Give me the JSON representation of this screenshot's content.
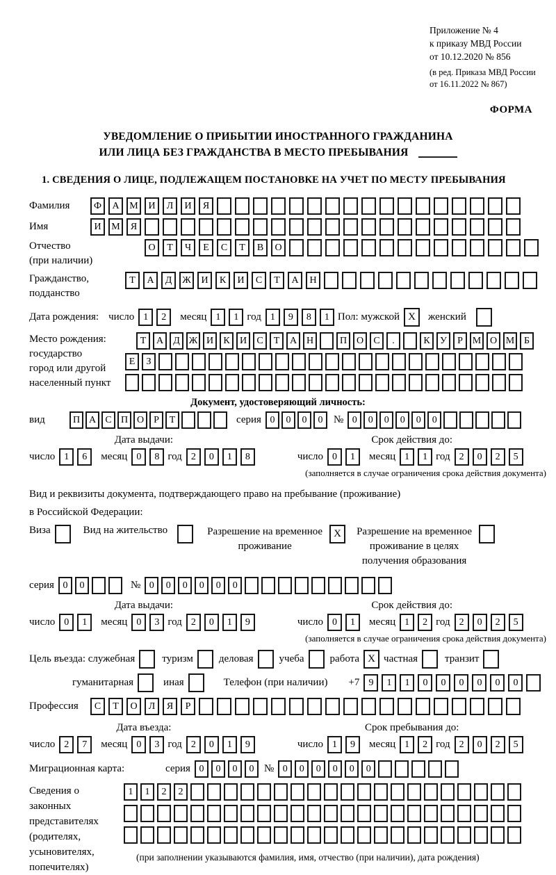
{
  "header": {
    "line1": "Приложение № 4",
    "line2": "к приказу МВД России",
    "line3": "от 10.12.2020 № 856",
    "line4": "(в ред. Приказа МВД России",
    "line5": "от 16.11.2022 № 867)",
    "forma": "ФОРМА"
  },
  "title": {
    "line1": "УВЕДОМЛЕНИЕ О ПРИБЫТИИ ИНОСТРАННОГО ГРАЖДАНИНА",
    "line2": "ИЛИ ЛИЦА БЕЗ ГРАЖДАНСТВА В МЕСТО ПРЕБЫВАНИЯ"
  },
  "section1_heading": "1. СВЕДЕНИЯ О ЛИЦЕ, ПОДЛЕЖАЩЕМ ПОСТАНОВКЕ НА УЧЕТ ПО МЕСТУ ПРЕБЫВАНИЯ",
  "shared": {
    "day": "число",
    "month": "месяц",
    "year": "год",
    "series": "серия",
    "number": "№",
    "limit_note": "(заполняется в случае ограничения срока действия документа)"
  },
  "person": {
    "surname_label": "Фамилия",
    "surname": {
      "value": "ФАМИЛИЯ",
      "cells": 24
    },
    "name_label": "Имя",
    "name": {
      "value": "ИМЯ",
      "cells": 24
    },
    "patronymic_label1": "Отчество",
    "patronymic_label2": "(при наличии)",
    "patronymic": {
      "value": "ОТЧЕСТВО",
      "cells": 22
    },
    "citizenship_label1": "Гражданство,",
    "citizenship_label2": "подданство",
    "citizenship": {
      "value": "ТАДЖИКИСТАН",
      "cells": 23
    },
    "birth_date_label": "Дата рождения:",
    "birth_day": {
      "value": "12",
      "cells": 2
    },
    "birth_month": {
      "value": "11",
      "cells": 2
    },
    "birth_year": {
      "value": "1981",
      "cells": 4
    },
    "sex_label": "Пол: мужской",
    "sex_male": "X",
    "sex_female_label": "женский",
    "sex_female": "",
    "birth_place_label1": "Место рождения:",
    "birth_place_label2": "государство",
    "birth_place_label3": "город или другой",
    "birth_place_label4": "населенный пункт",
    "birth_place_row1": {
      "value": "ТАДЖИКИСТАН ПОС. КУРМОМБ",
      "cells": 24
    },
    "birth_place_row2": {
      "value": "ЕЗ",
      "cells": 24
    },
    "birth_place_row3": {
      "value": "",
      "cells": 24
    }
  },
  "identity_doc": {
    "heading": "Документ, удостоверяющий личность:",
    "kind_label": "вид",
    "kind": {
      "value": "ПАСПОРТ",
      "cells": 10
    },
    "series": {
      "value": "0000",
      "cells": 4
    },
    "number": {
      "value": "000000",
      "cells": 11
    },
    "issue_heading": "Дата выдачи:",
    "issue_day": {
      "value": "16",
      "cells": 2
    },
    "issue_month": {
      "value": "08",
      "cells": 2
    },
    "issue_year": {
      "value": "2018",
      "cells": 4
    },
    "valid_heading": "Срок действия до:",
    "valid_day": {
      "value": "01",
      "cells": 2
    },
    "valid_month": {
      "value": "11",
      "cells": 2
    },
    "valid_year": {
      "value": "2025",
      "cells": 4
    }
  },
  "residence_doc": {
    "intro1": "Вид и реквизиты документа, подтверждающего право на пребывание (проживание)",
    "intro2": "в Российской Федерации:",
    "opt_visa_label": "Виза",
    "opt_visa": "",
    "opt_vnzh_label": "Вид на жительство",
    "opt_vnzh": "",
    "opt_rvp_label1": "Разрешение на временное",
    "opt_rvp_label2": "проживание",
    "opt_rvp": "X",
    "opt_rvpo_label1": "Разрешение на временное",
    "opt_rvpo_label2": "проживание в целях",
    "opt_rvpo_label3": "получения образования",
    "opt_rvpo": "",
    "series": {
      "value": "00",
      "cells": 4
    },
    "number": {
      "value": "000000",
      "cells": 15
    },
    "issue_heading": "Дата выдачи:",
    "issue_day": {
      "value": "01",
      "cells": 2
    },
    "issue_month": {
      "value": "03",
      "cells": 2
    },
    "issue_year": {
      "value": "2019",
      "cells": 4
    },
    "valid_heading": "Срок действия до:",
    "valid_day": {
      "value": "01",
      "cells": 2
    },
    "valid_month": {
      "value": "12",
      "cells": 2
    },
    "valid_year": {
      "value": "2025",
      "cells": 4
    }
  },
  "purpose": {
    "label": "Цель въезда: служебная",
    "sluzh": "",
    "turizm_label": "туризм",
    "turizm": "",
    "delov_label": "деловая",
    "delov": "",
    "ucheba_label": "учеба",
    "ucheba": "",
    "rabota_label": "работа",
    "rabota": "X",
    "chast_label": "частная",
    "chast": "",
    "tranzit_label": "транзит",
    "tranzit": "",
    "guman_label": "гуманитарная",
    "guman": "",
    "inaya_label": "иная",
    "inaya": "",
    "phone_label": "Телефон (при наличии)",
    "phone_prefix": "+7",
    "phone": {
      "value": "911000000",
      "cells": 10
    }
  },
  "profession_label": "Профессия",
  "profession": {
    "value": "СТОЛЯР",
    "cells": 24
  },
  "entry": {
    "entry_heading": "Дата въезда:",
    "entry_day": {
      "value": "27",
      "cells": 2
    },
    "entry_month": {
      "value": "03",
      "cells": 2
    },
    "entry_year": {
      "value": "2019",
      "cells": 4
    },
    "stay_heading": "Срок пребывания до:",
    "stay_day": {
      "value": "19",
      "cells": 2
    },
    "stay_month": {
      "value": "12",
      "cells": 2
    },
    "stay_year": {
      "value": "2025",
      "cells": 4
    }
  },
  "migration_card": {
    "label": "Миграционная карта:",
    "series": {
      "value": "0000",
      "cells": 4
    },
    "number": {
      "value": "000000",
      "cells": 11
    }
  },
  "legal": {
    "label1": "Сведения о",
    "label2": "законных",
    "label3": "представителях",
    "label4": "(родителях,",
    "label5": "усыновителях,",
    "label6": "попечителях)",
    "row1": {
      "value": "1122",
      "cells": 24
    },
    "row2": {
      "value": "",
      "cells": 24
    },
    "row3": {
      "value": "",
      "cells": 24
    },
    "caption": "(при заполнении указываются фамилия, имя, отчество (при наличии), дата рождения)"
  }
}
